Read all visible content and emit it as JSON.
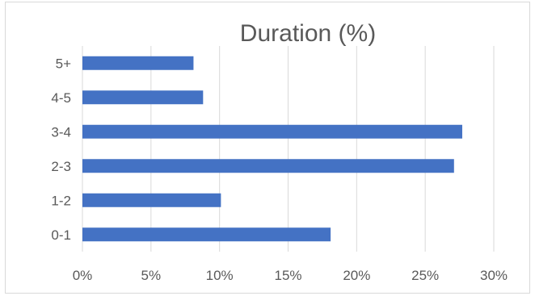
{
  "chart_data": {
    "type": "bar",
    "orientation": "horizontal",
    "title": "Duration (%)",
    "xlabel": "",
    "ylabel": "",
    "categories": [
      "0-1",
      "1-2",
      "2-3",
      "3-4",
      "4-5",
      "5+"
    ],
    "values": [
      18.1,
      10.1,
      27.1,
      27.7,
      8.8,
      8.1
    ],
    "xlim": [
      0,
      30
    ],
    "x_ticks": [
      "0%",
      "5%",
      "10%",
      "15%",
      "20%",
      "25%",
      "30%"
    ],
    "grid": "vertical",
    "legend": "none",
    "bar_color": "#4472c4",
    "grid_color": "#d9d9d9"
  }
}
